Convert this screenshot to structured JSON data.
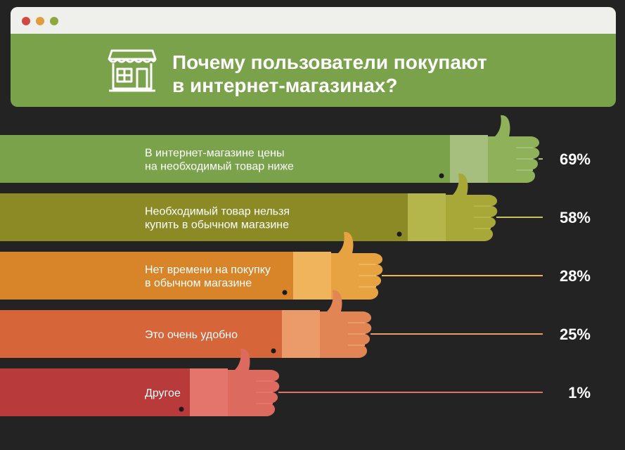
{
  "title_lines": [
    "Почему пользователи покупают",
    "в интернет-магазинах?"
  ],
  "window_dots": [
    "#d24a3f",
    "#e39b3d",
    "#8fa83d"
  ],
  "icon": "storefront-icon",
  "chart_data": {
    "type": "bar",
    "orientation": "horizontal",
    "value_suffix": "%",
    "categories": [
      [
        "В интернет-магазине цены",
        "на необходимый товар ниже"
      ],
      [
        "Необходимый товар нельзя",
        "купить в обычном магазине"
      ],
      [
        "Нет времени на покупку",
        "в обычном магазине"
      ],
      [
        "Это очень удобно"
      ],
      [
        "Другое"
      ]
    ],
    "values": [
      69,
      58,
      28,
      25,
      1
    ],
    "value_labels": [
      "69%",
      "58%",
      "28%",
      "25%",
      "1%"
    ],
    "colors": [
      {
        "bar": "#7aa24a",
        "cuff": "#a6be7e",
        "hand": "#8fb159",
        "line": "#a9c27e"
      },
      {
        "bar": "#8b8a25",
        "cuff": "#b4b54a",
        "hand": "#a7a838",
        "line": "#c6c45a"
      },
      {
        "bar": "#d8852a",
        "cuff": "#f0b55c",
        "hand": "#e7a241",
        "line": "#f0b15a"
      },
      {
        "bar": "#d7653a",
        "cuff": "#eb9a6a",
        "hand": "#e08553",
        "line": "#ec9a6a"
      },
      {
        "bar": "#b93a3b",
        "cuff": "#e4756d",
        "hand": "#dd6a5f",
        "line": "#e0706a"
      }
    ]
  }
}
